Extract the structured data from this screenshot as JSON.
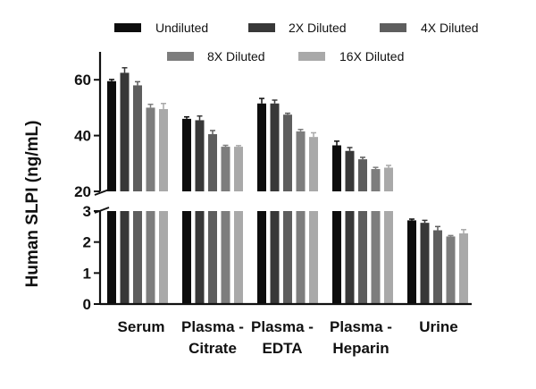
{
  "chart_data": {
    "type": "bar",
    "title": "",
    "xlabel": "",
    "ylabel": "Human SLPI (ng/mL)",
    "categories": [
      {
        "line1": "Serum",
        "line2": ""
      },
      {
        "line1": "Plasma -",
        "line2": "Citrate"
      },
      {
        "line1": "Plasma -",
        "line2": "EDTA"
      },
      {
        "line1": "Plasma -",
        "line2": "Heparin"
      },
      {
        "line1": "Urine",
        "line2": ""
      }
    ],
    "series": [
      {
        "name": "Undiluted",
        "color": "#0d0d0d",
        "values": [
          59.5,
          46.0,
          51.5,
          36.5,
          2.7
        ],
        "errors": [
          0.6,
          0.7,
          1.8,
          1.5,
          0.04
        ]
      },
      {
        "name": "2X Diluted",
        "color": "#383838",
        "values": [
          62.5,
          45.5,
          51.5,
          34.5,
          2.62
        ],
        "errors": [
          1.8,
          1.5,
          1.2,
          1.2,
          0.08
        ]
      },
      {
        "name": "4X Diluted",
        "color": "#5e5e5e",
        "values": [
          58.0,
          40.5,
          47.5,
          31.5,
          2.38
        ],
        "errors": [
          1.3,
          1.3,
          0.5,
          0.7,
          0.12
        ]
      },
      {
        "name": "8X Diluted",
        "color": "#7d7d7d",
        "values": [
          50.0,
          36.0,
          41.5,
          28.0,
          2.18
        ],
        "errors": [
          1.2,
          0.5,
          0.7,
          0.6,
          0.03
        ]
      },
      {
        "name": "16X Diluted",
        "color": "#a9a9a9",
        "values": [
          49.5,
          36.0,
          39.5,
          28.5,
          2.28
        ],
        "errors": [
          2.0,
          0.4,
          1.5,
          0.8,
          0.12
        ]
      }
    ],
    "y_axis_segments": [
      {
        "ylim": [
          0,
          3
        ],
        "ticks": [
          0,
          1,
          2,
          3
        ]
      },
      {
        "ylim": [
          20,
          70
        ],
        "ticks": [
          20,
          40,
          60
        ]
      }
    ],
    "legend_position": "top",
    "grid": false
  }
}
